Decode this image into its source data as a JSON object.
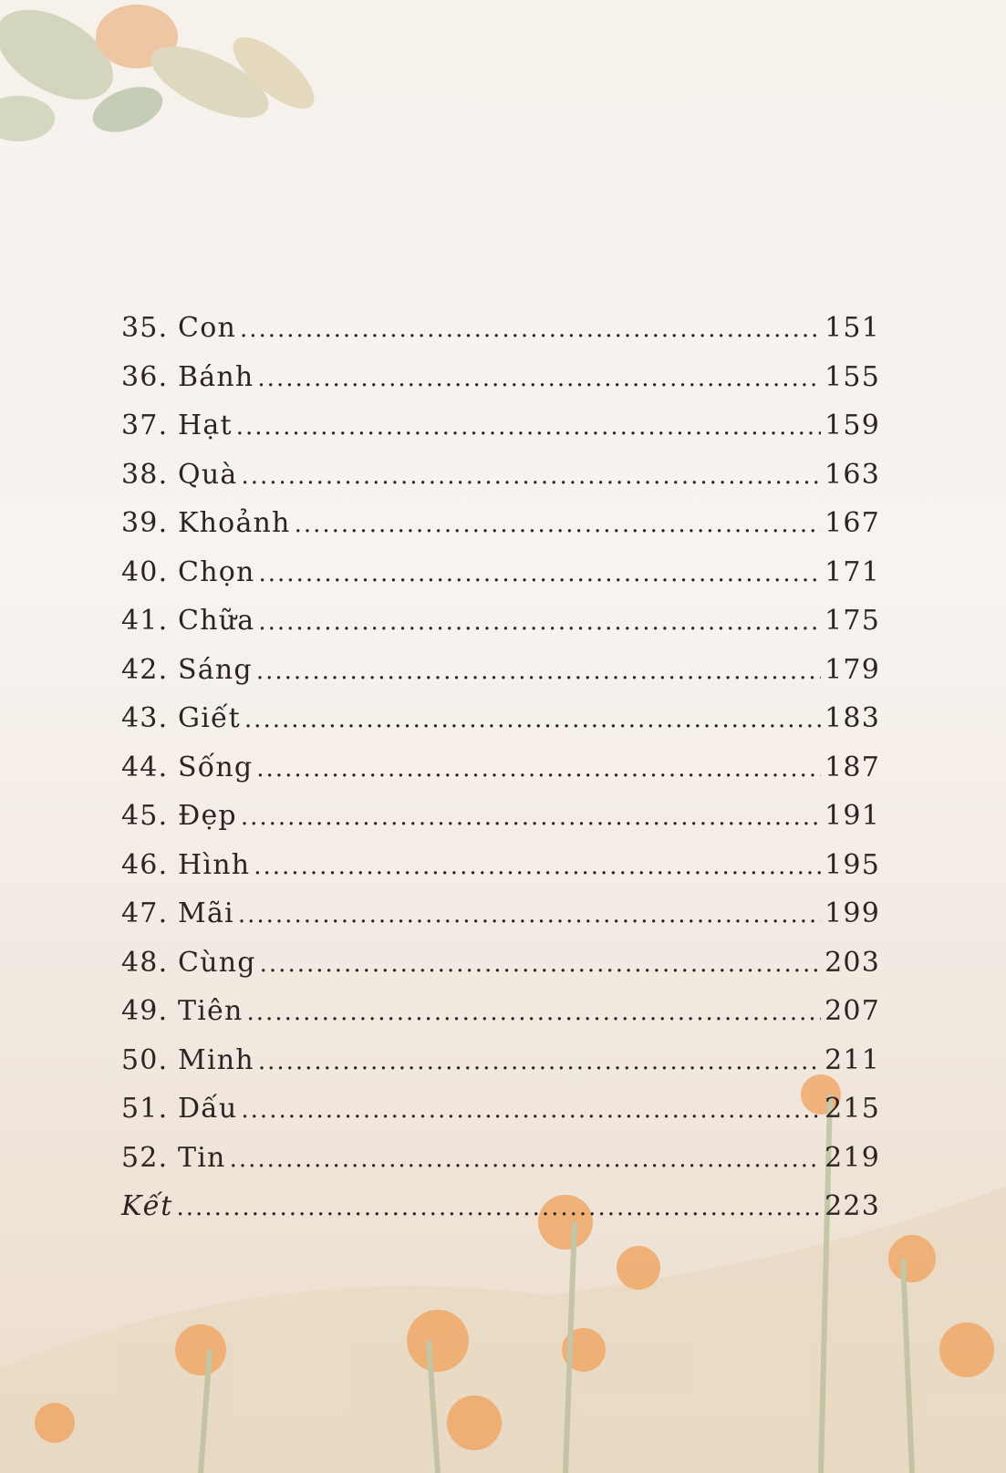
{
  "toc": {
    "entries": [
      {
        "title": "35. Con",
        "page": "151"
      },
      {
        "title": "36. Bánh",
        "page": "155"
      },
      {
        "title": "37. Hạt",
        "page": "159"
      },
      {
        "title": "38. Quà",
        "page": "163"
      },
      {
        "title": "39. Khoảnh",
        "page": "167"
      },
      {
        "title": "40. Chọn",
        "page": "171"
      },
      {
        "title": "41. Chữa",
        "page": "175"
      },
      {
        "title": "42. Sáng",
        "page": "179"
      },
      {
        "title": "43. Giết",
        "page": "183"
      },
      {
        "title": "44. Sống",
        "page": "187"
      },
      {
        "title": "45. Đẹp",
        "page": "191"
      },
      {
        "title": "46. Hình",
        "page": "195"
      },
      {
        "title": "47. Mãi",
        "page": "199"
      },
      {
        "title": "48. Cùng",
        "page": "203"
      },
      {
        "title": "49. Tiên",
        "page": "207"
      },
      {
        "title": "50. Minh",
        "page": "211"
      },
      {
        "title": "51. Dấu",
        "page": "215"
      },
      {
        "title": "52. Tin",
        "page": "219"
      },
      {
        "title": "Kết",
        "page": "223",
        "italic": true
      }
    ]
  },
  "colors": {
    "background": "#f8f3f0",
    "text": "#2b2422",
    "flower": "#f0913a",
    "leaf": "#a9b48a"
  }
}
